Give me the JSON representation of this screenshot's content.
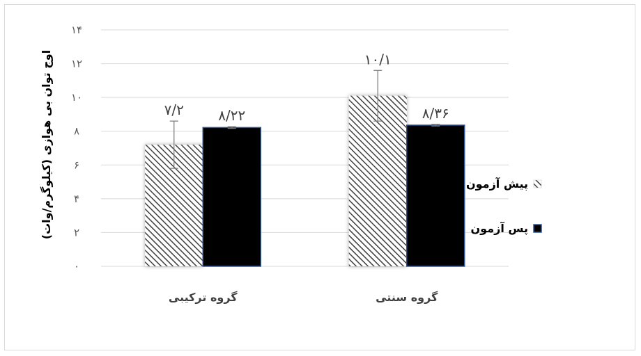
{
  "chart_data": {
    "type": "bar",
    "categories": [
      "گروه ترکیبی",
      "گروه سنتی"
    ],
    "series": [
      {
        "name": "پیش آزمون",
        "values": [
          7.2,
          10.1
        ],
        "error": [
          1.4,
          1.5
        ],
        "labels": [
          "۷/۲",
          "۱۰/۱"
        ],
        "fill": "hatch",
        "color": "#404040"
      },
      {
        "name": "پس آزمون",
        "values": [
          8.22,
          8.36
        ],
        "error": [
          0.05,
          0.05
        ],
        "labels": [
          "۸/۲۲",
          "۸/۳۶"
        ],
        "fill": "solid",
        "color": "#000000",
        "border": "#2f5597"
      }
    ],
    "ylabel": "اوج توان بی هوازی  (کیلوگرم/وات)",
    "ylim": [
      0,
      14
    ],
    "yticks": [
      0,
      2,
      4,
      6,
      8,
      10,
      12,
      14
    ],
    "ytick_labels": [
      "۰",
      "۲",
      "۴",
      "۶",
      "۸",
      "۱۰",
      "۱۲",
      "۱۴"
    ],
    "grid": true,
    "legend_position": "right"
  }
}
